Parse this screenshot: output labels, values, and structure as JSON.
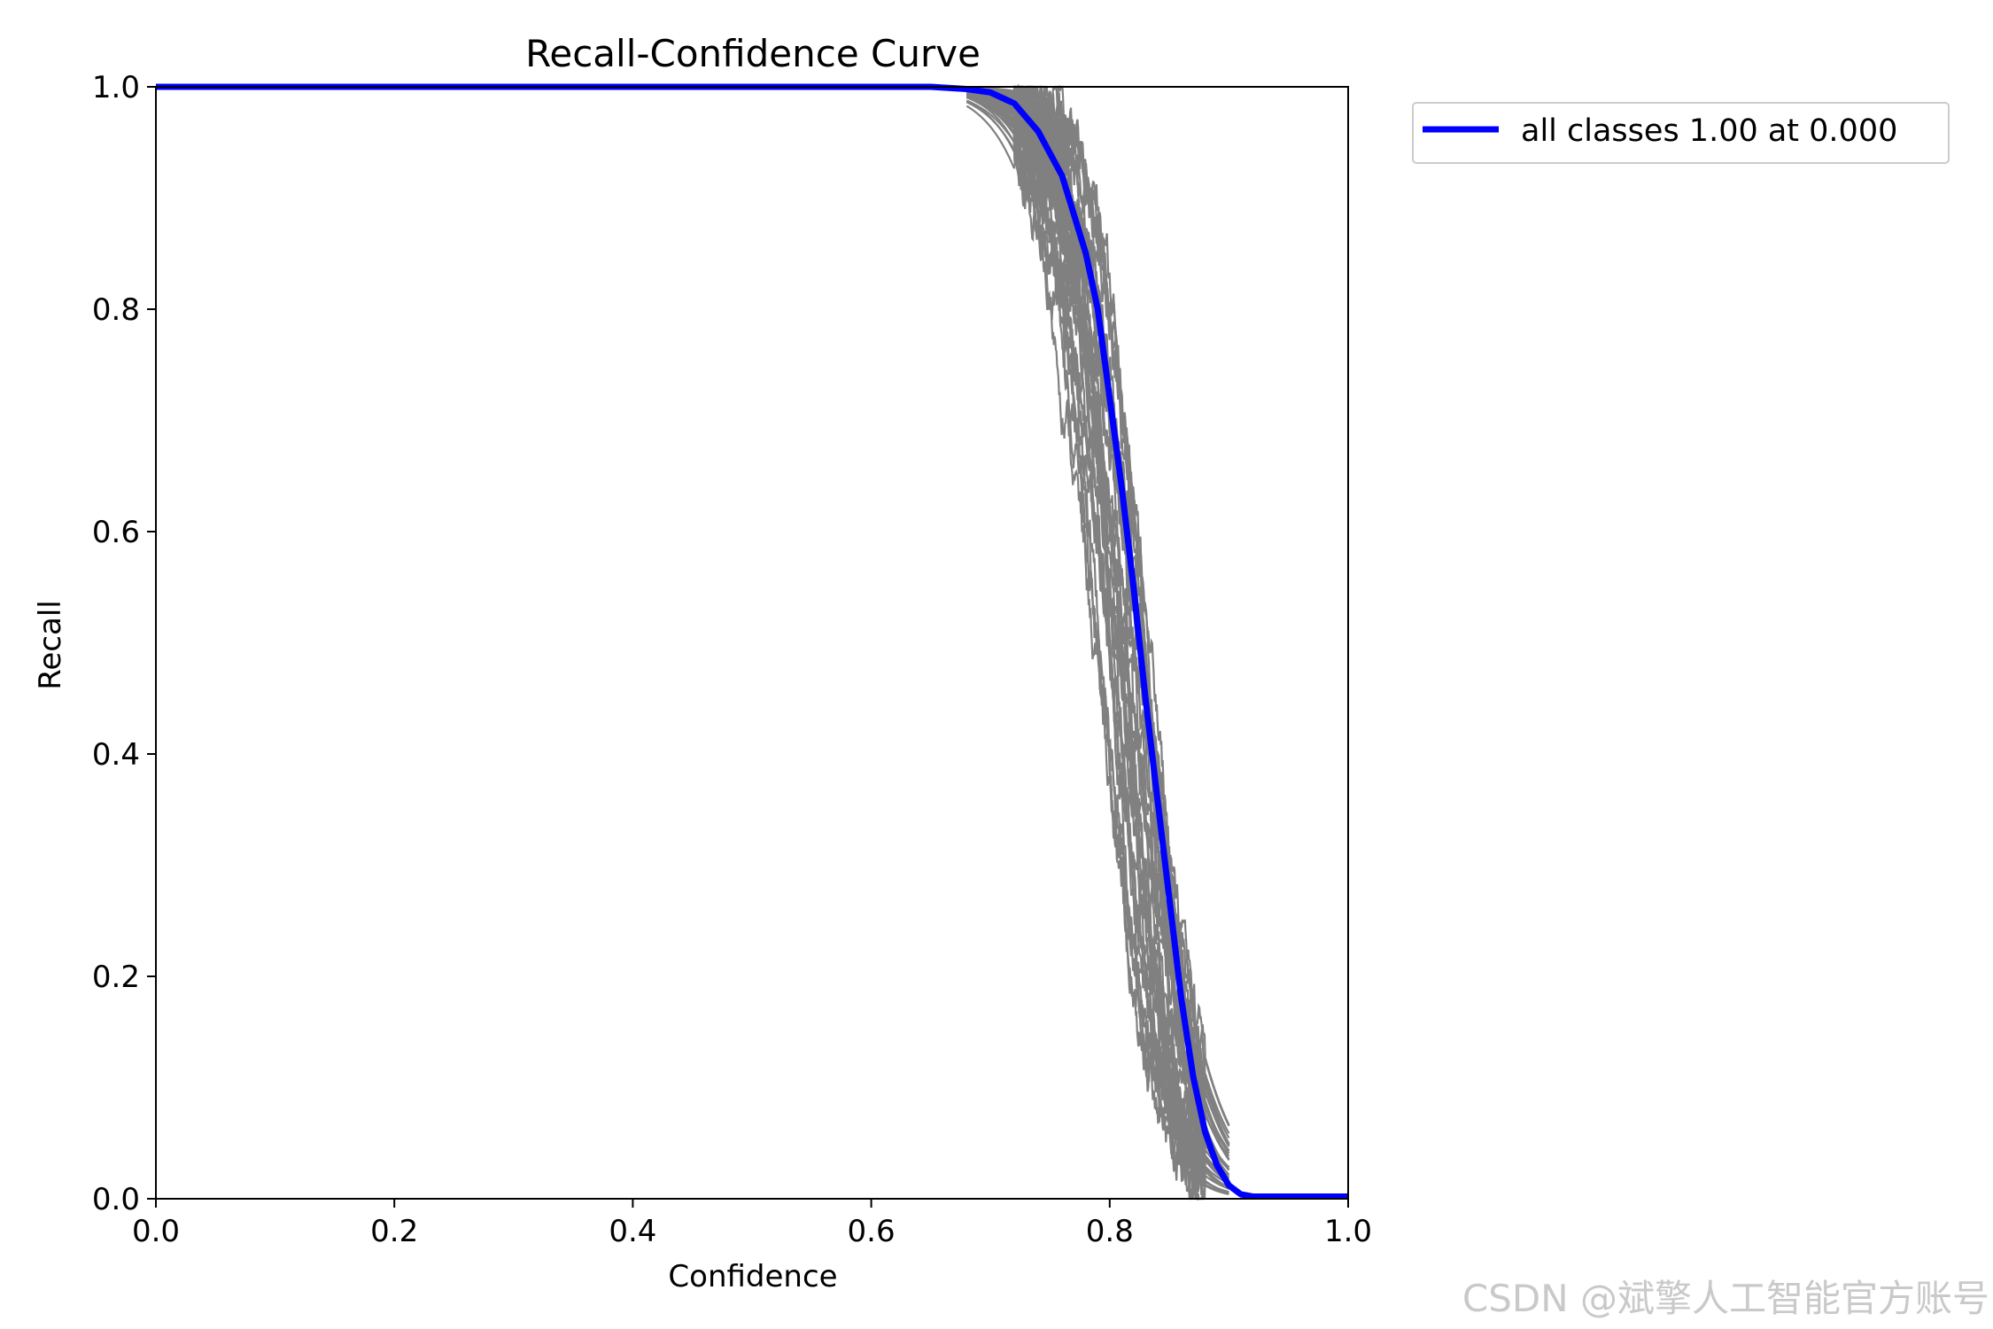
{
  "chart_data": {
    "type": "line",
    "title": "Recall-Confidence Curve",
    "xlabel": "Confidence",
    "ylabel": "Recall",
    "xlim": [
      0.0,
      1.0
    ],
    "ylim": [
      0.0,
      1.0
    ],
    "xticks": [
      "0.0",
      "0.2",
      "0.4",
      "0.6",
      "0.8",
      "1.0"
    ],
    "yticks": [
      "0.0",
      "0.2",
      "0.4",
      "0.6",
      "0.8",
      "1.0"
    ],
    "grid": false,
    "legend_position": "outside-top-right",
    "series": [
      {
        "name": "all classes 1.00 at 0.000",
        "color": "#0000ff",
        "x": [
          0.0,
          0.5,
          0.6,
          0.65,
          0.68,
          0.7,
          0.72,
          0.74,
          0.76,
          0.78,
          0.79,
          0.8,
          0.81,
          0.82,
          0.83,
          0.84,
          0.85,
          0.86,
          0.87,
          0.88,
          0.89,
          0.9,
          0.91,
          0.92,
          0.95,
          1.0
        ],
        "y": [
          1.0,
          1.0,
          1.0,
          1.0,
          0.998,
          0.995,
          0.985,
          0.96,
          0.92,
          0.85,
          0.8,
          0.72,
          0.64,
          0.55,
          0.45,
          0.36,
          0.27,
          0.18,
          0.11,
          0.06,
          0.03,
          0.012,
          0.004,
          0.002,
          0.002,
          0.002
        ]
      }
    ],
    "per_class_series": {
      "color": "#808080",
      "count": 40,
      "description_values": {
        "center_x_range": [
          0.785,
          0.835
        ],
        "start_drop_x": 0.7,
        "zero_at_x_range": [
          0.855,
          0.885
        ]
      }
    }
  },
  "watermark": {
    "text": "CSDN @斌擎人工智能官方账号"
  }
}
